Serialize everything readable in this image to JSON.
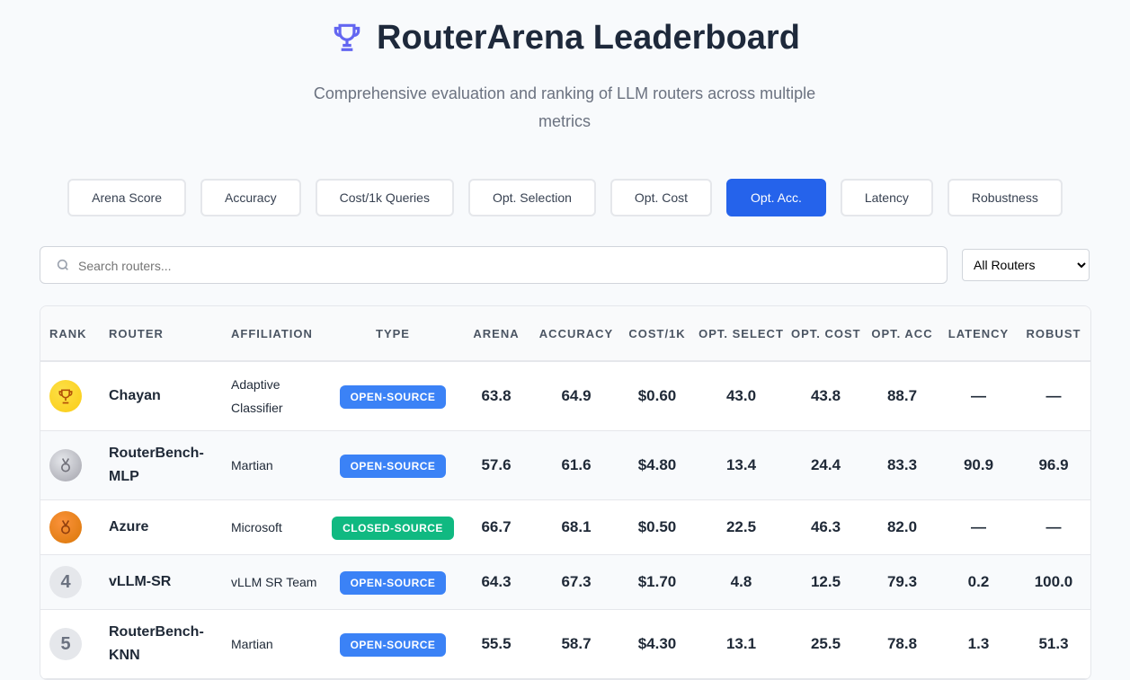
{
  "header": {
    "title": "RouterArena Leaderboard",
    "subtitle": "Comprehensive evaluation and ranking of LLM routers across multiple metrics"
  },
  "tabs": {
    "items": [
      "Arena Score",
      "Accuracy",
      "Cost/1k Queries",
      "Opt. Selection",
      "Opt. Cost",
      "Opt. Acc.",
      "Latency",
      "Robustness"
    ],
    "active": 5
  },
  "search": {
    "placeholder": "Search routers..."
  },
  "filter": {
    "selected": "All Routers"
  },
  "table": {
    "columns": [
      "RANK",
      "ROUTER",
      "AFFILIATION",
      "TYPE",
      "ARENA",
      "ACCURACY",
      "COST/1K",
      "OPT. SELECT",
      "OPT. COST",
      "OPT. ACC",
      "LATENCY",
      "ROBUST"
    ],
    "rows": [
      {
        "medal": "gold",
        "router": "Chayan",
        "affiliation": "Adaptive Classifier",
        "type": "OPEN-SOURCE",
        "type_color": "#3b82f6",
        "cells": [
          "63.8",
          "64.9",
          "$0.60",
          "43.0",
          "43.8",
          "88.7",
          "—",
          "—"
        ]
      },
      {
        "medal": "silver",
        "router": "RouterBench-MLP",
        "affiliation": "Martian",
        "type": "OPEN-SOURCE",
        "type_color": "#3b82f6",
        "cells": [
          "57.6",
          "61.6",
          "$4.80",
          "13.4",
          "24.4",
          "83.3",
          "90.9",
          "96.9"
        ]
      },
      {
        "medal": "bronze",
        "router": "Azure",
        "affiliation": "Microsoft",
        "type": "CLOSED-SOURCE",
        "type_color": "#10b981",
        "cells": [
          "66.7",
          "68.1",
          "$0.50",
          "22.5",
          "46.3",
          "82.0",
          "—",
          "—"
        ]
      },
      {
        "rank": "4",
        "router": "vLLM-SR",
        "affiliation": "vLLM SR Team",
        "type": "OPEN-SOURCE",
        "type_color": "#3b82f6",
        "cells": [
          "64.3",
          "67.3",
          "$1.70",
          "4.8",
          "12.5",
          "79.3",
          "0.2",
          "100.0"
        ]
      },
      {
        "rank": "5",
        "router": "RouterBench-KNN",
        "affiliation": "Martian",
        "type": "OPEN-SOURCE",
        "type_color": "#3b82f6",
        "cells": [
          "55.5",
          "58.7",
          "$4.30",
          "13.1",
          "25.5",
          "78.8",
          "1.3",
          "51.3"
        ]
      }
    ]
  }
}
